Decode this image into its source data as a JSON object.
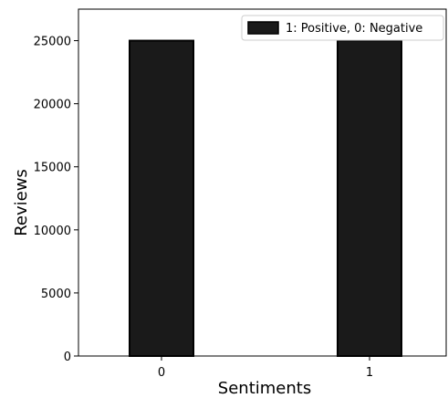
{
  "chart_data": {
    "type": "bar",
    "categories": [
      "0",
      "1"
    ],
    "values": [
      25000,
      25000
    ],
    "xlabel": "Sentiments",
    "ylabel": "Reviews",
    "yticks": [
      0,
      5000,
      10000,
      15000,
      20000,
      25000
    ],
    "ylim": [
      0,
      27500
    ],
    "grid": false,
    "legend": {
      "label": "1: Positive, 0: Negative",
      "placement": "top-right"
    },
    "bar_color": "#1a1a1a",
    "bar_edge_color": "#000000"
  }
}
